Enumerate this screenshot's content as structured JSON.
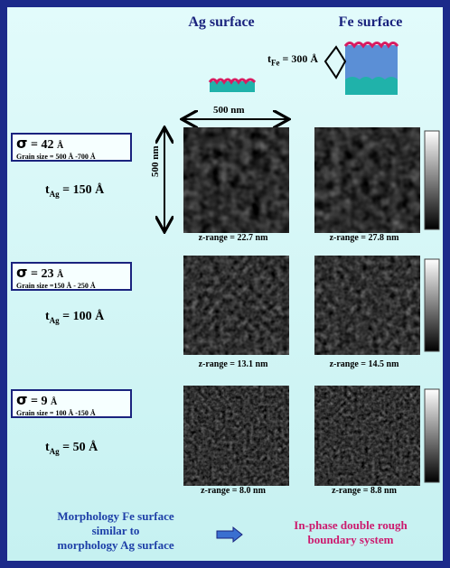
{
  "headers": [
    "Ag surface",
    "Fe surface"
  ],
  "schematic": {
    "t": "t",
    "sub": "Fe",
    "rest": "= 300 Å"
  },
  "scale_label": "500 nm",
  "rows": [
    {
      "sigma": "σ",
      "sigma_value": "= 42",
      "sigma_unit": "Å",
      "grain_size": "Grain size = 500 Å -700 Å",
      "t": "t",
      "t_sub": "Ag",
      "t_value": "= 150 Å",
      "z_ranges": [
        "z-range = 22.7 nm",
        "z-range = 27.8 nm"
      ]
    },
    {
      "sigma": "σ",
      "sigma_value": "= 23",
      "sigma_unit": "Å",
      "grain_size": "Grain size =150 Å - 250 Å",
      "t": "t",
      "t_sub": "Ag",
      "t_value": "= 100 Å",
      "z_ranges": [
        "z-range = 13.1 nm",
        "z-range = 14.5 nm"
      ]
    },
    {
      "sigma": "σ",
      "sigma_value": "= 9",
      "sigma_unit": "Å",
      "grain_size": "Grain size = 100 Å -150 Å",
      "t": "t",
      "t_sub": "Ag",
      "t_value": "= 50 Å",
      "z_ranges": [
        "z-range = 8.0 nm",
        "z-range = 8.8 nm"
      ]
    }
  ],
  "conclusion": {
    "left": [
      "Morphology Fe surface",
      "similar to",
      "morphology Ag surface"
    ],
    "right": [
      "In-phase double rough",
      "boundary system"
    ]
  }
}
